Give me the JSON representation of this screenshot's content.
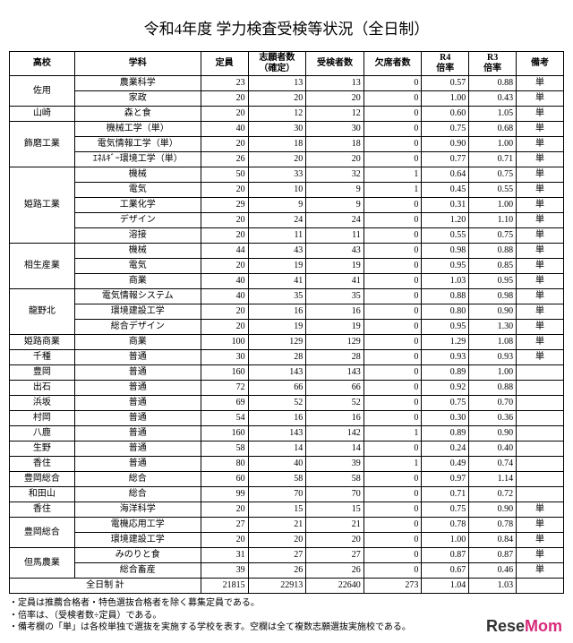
{
  "title": "令和4年度 学力検査受検等状況（全日制）",
  "header": {
    "school": "高校",
    "dept": "学科",
    "cap": "定員",
    "app": "志願者数\n（確定）",
    "exam": "受検者数",
    "abs": "欠席者数",
    "r4": "R4\n倍率",
    "r3": "R3\n倍率",
    "note": "備考"
  },
  "groups": [
    {
      "school": "佐用",
      "rows": [
        {
          "dept": "農業科学",
          "cap": 23,
          "app": 13,
          "exam": 13,
          "abs": 0,
          "r4": "0.57",
          "r3": "0.88",
          "note": "単"
        },
        {
          "dept": "家政",
          "cap": 20,
          "app": 20,
          "exam": 20,
          "abs": 0,
          "r4": "1.00",
          "r3": "0.43",
          "note": "単"
        }
      ]
    },
    {
      "school": "山崎",
      "rows": [
        {
          "dept": "森と食",
          "cap": 20,
          "app": 12,
          "exam": 12,
          "abs": 0,
          "r4": "0.60",
          "r3": "1.05",
          "note": "単"
        }
      ]
    },
    {
      "school": "飾磨工業",
      "rows": [
        {
          "dept": "機械工学（単）",
          "cap": 40,
          "app": 30,
          "exam": 30,
          "abs": 0,
          "r4": "0.75",
          "r3": "0.68",
          "note": "単"
        },
        {
          "dept": "電気情報工学（単）",
          "cap": 20,
          "app": 18,
          "exam": 18,
          "abs": 0,
          "r4": "0.90",
          "r3": "1.00",
          "note": "単"
        },
        {
          "dept": "ｴﾈﾙｷﾞｰ環境工学（単）",
          "cap": 26,
          "app": 20,
          "exam": 20,
          "abs": 0,
          "r4": "0.77",
          "r3": "0.71",
          "note": "単"
        }
      ]
    },
    {
      "school": "姫路工業",
      "rows": [
        {
          "dept": "機械",
          "cap": 50,
          "app": 33,
          "exam": 32,
          "abs": 1,
          "r4": "0.64",
          "r3": "0.75",
          "note": "単"
        },
        {
          "dept": "電気",
          "cap": 20,
          "app": 10,
          "exam": 9,
          "abs": 1,
          "r4": "0.45",
          "r3": "0.55",
          "note": "単"
        },
        {
          "dept": "工業化学",
          "cap": 29,
          "app": 9,
          "exam": 9,
          "abs": 0,
          "r4": "0.31",
          "r3": "1.00",
          "note": "単"
        },
        {
          "dept": "デザイン",
          "cap": 20,
          "app": 24,
          "exam": 24,
          "abs": 0,
          "r4": "1.20",
          "r3": "1.10",
          "note": "単"
        },
        {
          "dept": "溶接",
          "cap": 20,
          "app": 11,
          "exam": 11,
          "abs": 0,
          "r4": "0.55",
          "r3": "0.75",
          "note": "単"
        }
      ]
    },
    {
      "school": "相生産業",
      "rows": [
        {
          "dept": "機械",
          "cap": 44,
          "app": 43,
          "exam": 43,
          "abs": 0,
          "r4": "0.98",
          "r3": "0.88",
          "note": "単"
        },
        {
          "dept": "電気",
          "cap": 20,
          "app": 19,
          "exam": 19,
          "abs": 0,
          "r4": "0.95",
          "r3": "0.85",
          "note": "単"
        },
        {
          "dept": "商業",
          "cap": 40,
          "app": 41,
          "exam": 41,
          "abs": 0,
          "r4": "1.03",
          "r3": "0.95",
          "note": "単"
        }
      ]
    },
    {
      "school": "龍野北",
      "rows": [
        {
          "dept": "電気情報システム",
          "cap": 40,
          "app": 35,
          "exam": 35,
          "abs": 0,
          "r4": "0.88",
          "r3": "0.98",
          "note": "単"
        },
        {
          "dept": "環境建設工学",
          "cap": 20,
          "app": 16,
          "exam": 16,
          "abs": 0,
          "r4": "0.80",
          "r3": "0.90",
          "note": "単"
        },
        {
          "dept": "総合デザイン",
          "cap": 20,
          "app": 19,
          "exam": 19,
          "abs": 0,
          "r4": "0.95",
          "r3": "1.30",
          "note": "単"
        }
      ]
    },
    {
      "school": "姫路商業",
      "rows": [
        {
          "dept": "商業",
          "cap": 100,
          "app": 129,
          "exam": 129,
          "abs": 0,
          "r4": "1.29",
          "r3": "1.08",
          "note": "単"
        }
      ]
    },
    {
      "school": "千種",
      "rows": [
        {
          "dept": "普通",
          "cap": 30,
          "app": 28,
          "exam": 28,
          "abs": 0,
          "r4": "0.93",
          "r3": "0.93",
          "note": "単"
        }
      ]
    },
    {
      "school": "豊岡",
      "rows": [
        {
          "dept": "普通",
          "cap": 160,
          "app": 143,
          "exam": 143,
          "abs": 0,
          "r4": "0.89",
          "r3": "1.00",
          "note": ""
        }
      ]
    },
    {
      "school": "出石",
      "rows": [
        {
          "dept": "普通",
          "cap": 72,
          "app": 66,
          "exam": 66,
          "abs": 0,
          "r4": "0.92",
          "r3": "0.88",
          "note": ""
        }
      ]
    },
    {
      "school": "浜坂",
      "rows": [
        {
          "dept": "普通",
          "cap": 69,
          "app": 52,
          "exam": 52,
          "abs": 0,
          "r4": "0.75",
          "r3": "0.70",
          "note": ""
        }
      ]
    },
    {
      "school": "村岡",
      "rows": [
        {
          "dept": "普通",
          "cap": 54,
          "app": 16,
          "exam": 16,
          "abs": 0,
          "r4": "0.30",
          "r3": "0.36",
          "note": ""
        }
      ]
    },
    {
      "school": "八鹿",
      "rows": [
        {
          "dept": "普通",
          "cap": 160,
          "app": 143,
          "exam": 142,
          "abs": 1,
          "r4": "0.89",
          "r3": "0.90",
          "note": ""
        }
      ]
    },
    {
      "school": "生野",
      "rows": [
        {
          "dept": "普通",
          "cap": 58,
          "app": 14,
          "exam": 14,
          "abs": 0,
          "r4": "0.24",
          "r3": "0.40",
          "note": ""
        }
      ]
    },
    {
      "school": "香住",
      "rows": [
        {
          "dept": "普通",
          "cap": 80,
          "app": 40,
          "exam": 39,
          "abs": 1,
          "r4": "0.49",
          "r3": "0.74",
          "note": ""
        }
      ]
    },
    {
      "school": "豊岡総合",
      "rows": [
        {
          "dept": "総合",
          "cap": 60,
          "app": 58,
          "exam": 58,
          "abs": 0,
          "r4": "0.97",
          "r3": "1.14",
          "note": ""
        }
      ]
    },
    {
      "school": "和田山",
      "rows": [
        {
          "dept": "総合",
          "cap": 99,
          "app": 70,
          "exam": 70,
          "abs": 0,
          "r4": "0.71",
          "r3": "0.72",
          "note": ""
        }
      ]
    },
    {
      "school": "香住",
      "rows": [
        {
          "dept": "海洋科学",
          "cap": 20,
          "app": 15,
          "exam": 15,
          "abs": 0,
          "r4": "0.75",
          "r3": "0.90",
          "note": "単"
        }
      ]
    },
    {
      "school": "豊岡総合",
      "rows": [
        {
          "dept": "電機応用工学",
          "cap": 27,
          "app": 21,
          "exam": 21,
          "abs": 0,
          "r4": "0.78",
          "r3": "0.78",
          "note": "単"
        },
        {
          "dept": "環境建設工学",
          "cap": 20,
          "app": 20,
          "exam": 20,
          "abs": 0,
          "r4": "1.00",
          "r3": "0.84",
          "note": "単"
        }
      ]
    },
    {
      "school": "但馬農業",
      "rows": [
        {
          "dept": "みのりと食",
          "cap": 31,
          "app": 27,
          "exam": 27,
          "abs": 0,
          "r4": "0.87",
          "r3": "0.87",
          "note": "単"
        },
        {
          "dept": "総合畜産",
          "cap": 39,
          "app": 26,
          "exam": 26,
          "abs": 0,
          "r4": "0.67",
          "r3": "0.46",
          "note": "単"
        }
      ]
    }
  ],
  "total": {
    "label": "全日制 計",
    "cap": 21815,
    "app": 22913,
    "exam": 22640,
    "abs": 273,
    "r4": "1.04",
    "r3": "1.03",
    "note": ""
  },
  "footnotes": [
    "・定員は推薦合格者・特色選抜合格者を除く募集定員である。",
    "・倍率は、（受検者数÷定員）である。",
    "・備考欄の「単」は各校単独で選抜を実施する学校を表す。空欄は全て複数志願選抜実施校である。"
  ],
  "watermark": {
    "text1": "ReseMom",
    "color1": "#333333",
    "color2": "#d72b7b"
  }
}
